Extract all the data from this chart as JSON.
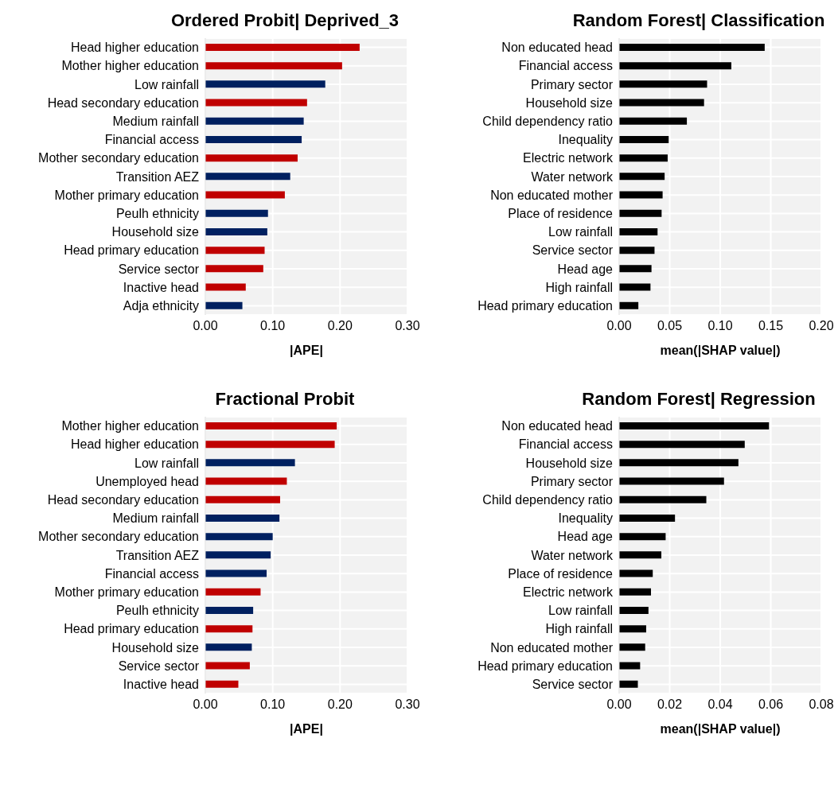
{
  "chart_data": [
    {
      "type": "bar",
      "orientation": "horizontal",
      "title": "Ordered Probit| Deprived_3",
      "xlabel": "|APE|",
      "categories": [
        "Head higher education",
        "Mother higher education",
        "Low rainfall",
        "Head secondary education",
        "Medium rainfall",
        "Financial access",
        "Mother secondary education",
        "Transition AEZ",
        "Mother primary education",
        "Peulh ethnicity",
        "Household size",
        "Head primary education",
        "Service sector",
        "Inactive head",
        "Adja ethnicity"
      ],
      "values": [
        0.229,
        0.203,
        0.178,
        0.151,
        0.146,
        0.143,
        0.137,
        0.126,
        0.118,
        0.093,
        0.092,
        0.088,
        0.086,
        0.06,
        0.055
      ],
      "colors": [
        "#c00000",
        "#c00000",
        "#002060",
        "#c00000",
        "#002060",
        "#002060",
        "#c00000",
        "#002060",
        "#c00000",
        "#002060",
        "#002060",
        "#c00000",
        "#c00000",
        "#c00000",
        "#002060"
      ],
      "xlim": [
        0,
        0.3
      ],
      "xticks": [
        {
          "value": 0,
          "label": "0.00"
        },
        {
          "value": 0.1,
          "label": "0.10"
        },
        {
          "value": 0.2,
          "label": "0.20"
        },
        {
          "value": 0.3,
          "label": "0.30"
        }
      ],
      "grid": true
    },
    {
      "type": "bar",
      "orientation": "horizontal",
      "title": "Random Forest| Classification",
      "xlabel": "mean(|SHAP value|)",
      "categories": [
        "Non educated head",
        "Financial access",
        "Primary sector",
        "Household size",
        "Child dependency ratio",
        "Inequality",
        "Electric network",
        "Water network",
        "Non educated mother",
        "Place of residence",
        "Low rainfall",
        "Service sector",
        "Head age",
        "High rainfall",
        "Head primary education"
      ],
      "values": [
        0.144,
        0.111,
        0.087,
        0.084,
        0.067,
        0.049,
        0.048,
        0.045,
        0.043,
        0.042,
        0.038,
        0.035,
        0.032,
        0.031,
        0.019
      ],
      "colors": [
        "#000000",
        "#000000",
        "#000000",
        "#000000",
        "#000000",
        "#000000",
        "#000000",
        "#000000",
        "#000000",
        "#000000",
        "#000000",
        "#000000",
        "#000000",
        "#000000",
        "#000000"
      ],
      "xlim": [
        0,
        0.2
      ],
      "xticks": [
        {
          "value": 0,
          "label": "0.00"
        },
        {
          "value": 0.05,
          "label": "0.05"
        },
        {
          "value": 0.1,
          "label": "0.10"
        },
        {
          "value": 0.15,
          "label": "0.15"
        },
        {
          "value": 0.2,
          "label": "0.20"
        }
      ],
      "grid": true
    },
    {
      "type": "bar",
      "orientation": "horizontal",
      "title": "Fractional Probit",
      "xlabel": "|APE|",
      "categories": [
        "Mother higher education",
        "Head higher education",
        "Low rainfall",
        "Unemployed head",
        "Head secondary education",
        "Medium rainfall",
        "Mother secondary education",
        "Transition AEZ",
        "Financial access",
        "Mother primary education",
        "Peulh ethnicity",
        "Head primary education",
        "Household size",
        "Service sector",
        "Inactive head"
      ],
      "values": [
        0.195,
        0.192,
        0.133,
        0.121,
        0.111,
        0.11,
        0.1,
        0.097,
        0.091,
        0.082,
        0.071,
        0.07,
        0.069,
        0.066,
        0.049
      ],
      "colors": [
        "#c00000",
        "#c00000",
        "#002060",
        "#c00000",
        "#c00000",
        "#002060",
        "#002060",
        "#002060",
        "#002060",
        "#c00000",
        "#002060",
        "#c00000",
        "#002060",
        "#c00000",
        "#c00000"
      ],
      "xlim": [
        0,
        0.3
      ],
      "xticks": [
        {
          "value": 0,
          "label": "0.00"
        },
        {
          "value": 0.1,
          "label": "0.10"
        },
        {
          "value": 0.2,
          "label": "0.20"
        },
        {
          "value": 0.3,
          "label": "0.30"
        }
      ],
      "grid": true
    },
    {
      "type": "bar",
      "orientation": "horizontal",
      "title": "Random Forest| Regression",
      "xlabel": "mean(|SHAP value|)",
      "categories": [
        "Non educated head",
        "Financial access",
        "Household size",
        "Primary sector",
        "Child dependency ratio",
        "Inequality",
        "Head age",
        "Water network",
        "Place of residence",
        "Electric network",
        "Low rainfall",
        "High rainfall",
        "Non educated mother",
        "Head primary education",
        "Service sector"
      ],
      "values": [
        0.0593,
        0.0497,
        0.0472,
        0.0415,
        0.0345,
        0.0221,
        0.0184,
        0.0167,
        0.0133,
        0.0126,
        0.0116,
        0.0107,
        0.0103,
        0.0083,
        0.0074
      ],
      "colors": [
        "#000000",
        "#000000",
        "#000000",
        "#000000",
        "#000000",
        "#000000",
        "#000000",
        "#000000",
        "#000000",
        "#000000",
        "#000000",
        "#000000",
        "#000000",
        "#000000",
        "#000000"
      ],
      "xlim": [
        0,
        0.08
      ],
      "xticks": [
        {
          "value": 0,
          "label": "0.00"
        },
        {
          "value": 0.02,
          "label": "0.02"
        },
        {
          "value": 0.04,
          "label": "0.04"
        },
        {
          "value": 0.06,
          "label": "0.06"
        },
        {
          "value": 0.08,
          "label": "0.08"
        }
      ],
      "grid": true
    }
  ]
}
